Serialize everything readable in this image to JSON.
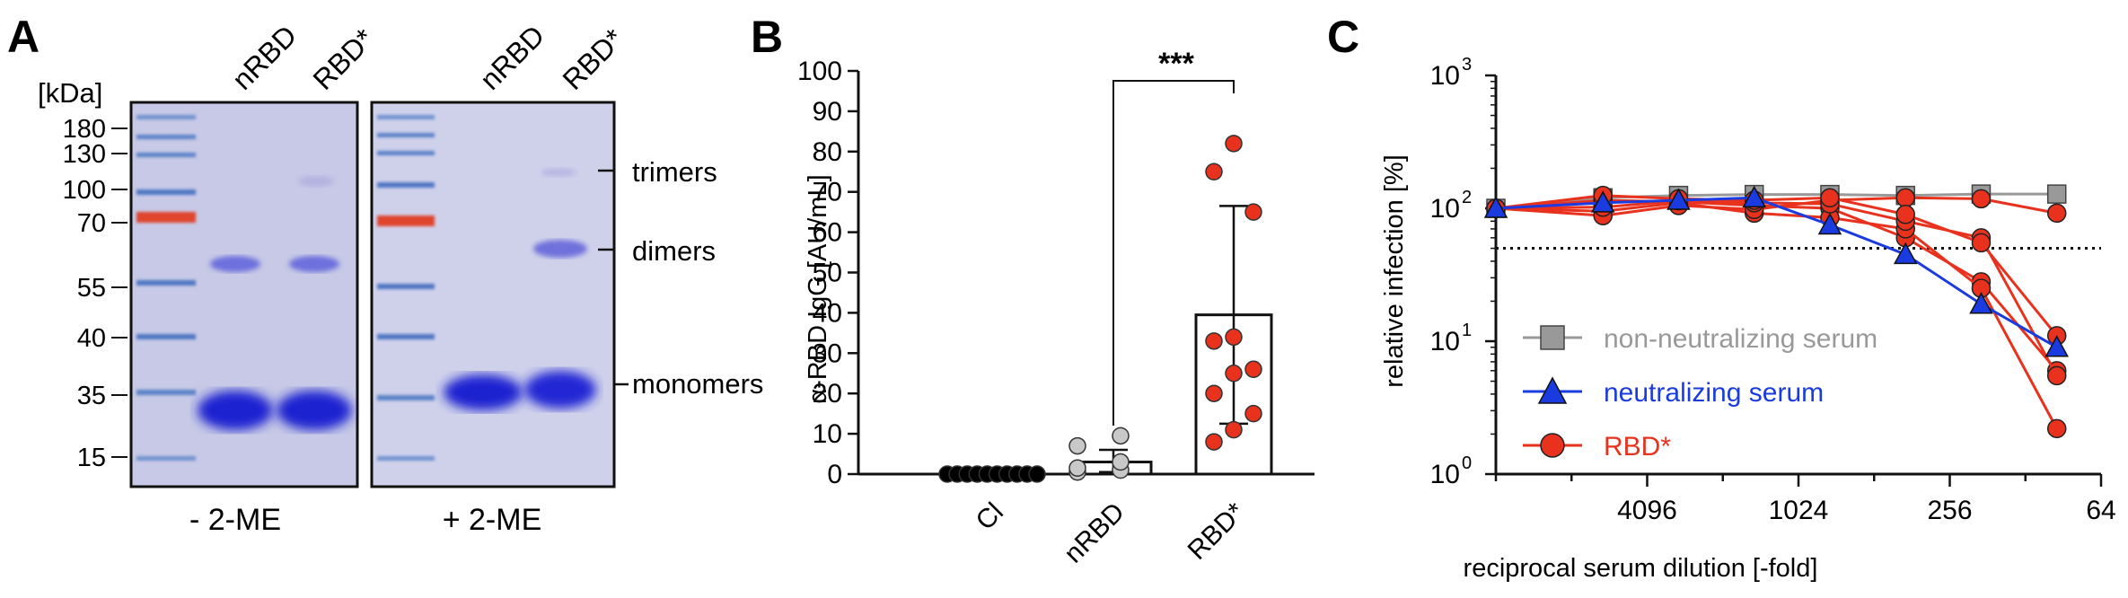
{
  "panel_labels": [
    "A",
    "B",
    "C"
  ],
  "gel": {
    "unit_label": "[kDa]",
    "marker_labels": [
      "180",
      "130",
      "100",
      "70",
      "55",
      "40",
      "35",
      "15"
    ],
    "lane_labels_left": [
      "nRBD",
      "RBD*"
    ],
    "lane_labels_right": [
      "nRBD",
      "RBD*"
    ],
    "band_labels": [
      "trimers",
      "dimers",
      "monomers"
    ],
    "condition_left": "- 2-ME",
    "condition_right": "+ 2-ME",
    "colors": {
      "background": "#c7c9e6",
      "band": "#1f22d0",
      "ladder_blue": "#4f77c4",
      "ladder_red": "#e0452e"
    }
  },
  "chart_data": [
    {
      "type": "bar",
      "panel": "B",
      "categories": [
        "Cl",
        "nRBD",
        "RBD*"
      ],
      "values": [
        0,
        3,
        39.5
      ],
      "error_upper": [
        0,
        6,
        66.5
      ],
      "error_lower": [
        0,
        0.5,
        12.5
      ],
      "points": [
        [
          0,
          0,
          0,
          0,
          0,
          0,
          0,
          0,
          0,
          0
        ],
        [
          0.5,
          1,
          1.5,
          3,
          7,
          9.5
        ],
        [
          8,
          11,
          15,
          20,
          25,
          26,
          33,
          34,
          65,
          75,
          82
        ]
      ],
      "point_colors": [
        "#000000",
        "#c8c8c8",
        "#e8321e"
      ],
      "ylabel": "α-RBD IgG [AU/mL]",
      "ylim": [
        0,
        100
      ],
      "yticks": [
        "0",
        "10",
        "20",
        "30",
        "40",
        "50",
        "60",
        "70",
        "80",
        "90",
        "100"
      ],
      "significance": "***"
    },
    {
      "type": "line",
      "panel": "C",
      "xlabel": "reciprocal serum dilution [-fold]",
      "ylabel": "relative infection [%]",
      "x_scale": "log2, descending",
      "xlim": [
        16384,
        64
      ],
      "xticks": [
        "4096",
        "1024",
        "256",
        "64"
      ],
      "y_scale": "log10",
      "ylim": [
        1,
        1000
      ],
      "yticks": [
        {
          "base": "10",
          "exp": "0"
        },
        {
          "base": "10",
          "exp": "1"
        },
        {
          "base": "10",
          "exp": "2"
        },
        {
          "base": "10",
          "exp": "3"
        }
      ],
      "x": [
        16384,
        6144,
        3072,
        1536,
        768,
        384,
        192,
        96
      ],
      "threshold": 50,
      "series": [
        {
          "name": "non-neutralizing serum",
          "marker": "square",
          "color": "#999999",
          "values": [
            100,
            120,
            125,
            127,
            127,
            125,
            128,
            128
          ]
        },
        {
          "name": "neutralizing serum",
          "marker": "triangle",
          "color": "#1a3be0",
          "values": [
            100,
            110,
            115,
            120,
            75,
            45,
            19,
            9
          ]
        },
        {
          "name": "RBD*",
          "marker": "circle",
          "color": "#e8321e",
          "values": [
            100,
            125,
            118,
            115,
            120,
            90,
            55,
            11
          ]
        },
        {
          "name": "",
          "marker": "circle",
          "color": "#e8321e",
          "values": [
            100,
            115,
            112,
            105,
            100,
            60,
            28,
            6
          ]
        },
        {
          "name": "",
          "marker": "circle",
          "color": "#e8321e",
          "values": [
            100,
            95,
            110,
            92,
            85,
            70,
            25,
            2.2
          ]
        },
        {
          "name": "",
          "marker": "circle",
          "color": "#e8321e",
          "values": [
            100,
            88,
            105,
            98,
            115,
            120,
            118,
            92
          ]
        },
        {
          "name": "",
          "marker": "circle",
          "color": "#e8321e",
          "values": [
            100,
            102,
            114,
            110,
            108,
            80,
            60,
            5.5
          ]
        }
      ],
      "legend_position": "bottom-left"
    }
  ]
}
